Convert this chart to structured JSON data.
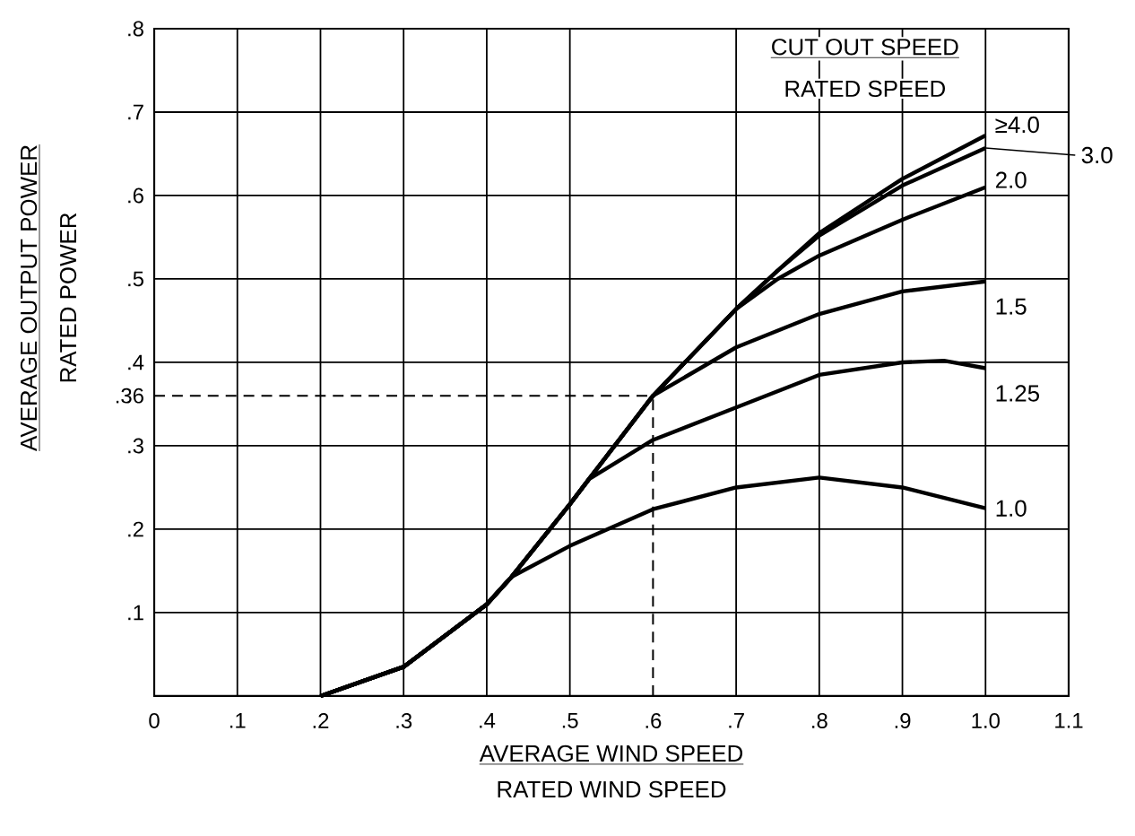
{
  "chart_data": {
    "type": "line",
    "xlabel": "AVERAGE WIND SPEED",
    "ylabel": "AVERAGE OUTPUT POWER",
    "legend_title": "CUT OUT SPEED",
    "annotations": [
      "RATED WIND SPEED",
      "RATED POWER",
      "RATED SPEED"
    ],
    "xlim": [
      0,
      1.1
    ],
    "ylim": [
      0,
      0.8
    ],
    "xticks": [
      0,
      {
        "value": 0.1,
        "label": ".1"
      },
      {
        "value": 0.2,
        "label": ".2"
      },
      {
        "value": 0.3,
        "label": ".3"
      },
      {
        "value": 0.4,
        "label": ".4"
      },
      {
        "value": 0.5,
        "label": ".5"
      },
      {
        "value": 0.6,
        "label": ".6"
      },
      {
        "value": 0.7,
        "label": ".7"
      },
      {
        "value": 0.8,
        "label": ".8"
      },
      {
        "value": 0.9,
        "label": ".9"
      },
      {
        "value": 1.0,
        "label": "1.0"
      },
      {
        "value": 1.1,
        "label": "1.1"
      }
    ],
    "yticks": [
      {
        "value": 0,
        "label": null
      },
      {
        "value": 0.1,
        "label": ".1"
      },
      {
        "value": 0.2,
        "label": ".2"
      },
      {
        "value": 0.3,
        "label": ".3"
      },
      {
        "value": 0.36,
        "label": ".36"
      },
      {
        "value": 0.4,
        "label": ".4"
      },
      {
        "value": 0.5,
        "label": ".5"
      },
      {
        "value": 0.6,
        "label": ".6"
      },
      {
        "value": 0.7,
        "label": ".7"
      },
      {
        "value": 0.8,
        "label": ".8"
      }
    ],
    "grid": true,
    "legend": "top right",
    "marker": "none",
    "line_style": "solid",
    "ref_lines": [
      {
        "axis": "y",
        "value": 0.36,
        "line_style": "dashed"
      },
      {
        "axis": "x",
        "value": 0.6,
        "line_style": "dashed"
      }
    ],
    "series": [
      {
        "name": "1.0",
        "color": "#000000",
        "x": [
          0.2,
          0.3,
          0.4,
          0.43,
          0.5,
          0.6,
          0.7,
          0.8,
          0.9,
          1.0
        ],
        "values": [
          0,
          0.035,
          0.11,
          0.143,
          0.18,
          0.224,
          0.25,
          0.262,
          0.25,
          0.225
        ]
      },
      {
        "name": "1.25",
        "color": "#000000",
        "x": [
          0.2,
          0.3,
          0.4,
          0.43,
          0.5,
          0.523,
          0.6,
          0.7,
          0.8,
          0.9,
          0.95,
          1.0
        ],
        "values": [
          0,
          0.035,
          0.11,
          0.143,
          0.23,
          0.26,
          0.307,
          0.346,
          0.385,
          0.4,
          0.402,
          0.393
        ]
      },
      {
        "name": "1.5",
        "color": "#000000",
        "x": [
          0.2,
          0.3,
          0.4,
          0.43,
          0.5,
          0.523,
          0.6,
          0.7,
          0.8,
          0.9,
          1.0
        ],
        "values": [
          0,
          0.035,
          0.11,
          0.143,
          0.23,
          0.26,
          0.36,
          0.418,
          0.458,
          0.485,
          0.497
        ]
      },
      {
        "name": "2.0",
        "color": "#000000",
        "x": [
          0.2,
          0.3,
          0.4,
          0.43,
          0.5,
          0.523,
          0.6,
          0.7,
          0.75,
          0.8,
          0.9,
          1.0
        ],
        "values": [
          0,
          0.035,
          0.11,
          0.143,
          0.23,
          0.26,
          0.36,
          0.464,
          0.5,
          0.528,
          0.571,
          0.61
        ]
      },
      {
        "name": "3.0",
        "color": "#000000",
        "x": [
          0.2,
          0.3,
          0.4,
          0.43,
          0.5,
          0.523,
          0.6,
          0.7,
          0.75,
          0.8,
          0.9,
          1.0
        ],
        "values": [
          0,
          0.035,
          0.11,
          0.143,
          0.23,
          0.26,
          0.36,
          0.464,
          0.51,
          0.552,
          0.612,
          0.657
        ]
      },
      {
        "name": "≥4.0",
        "color": "#000000",
        "x": [
          0.2,
          0.3,
          0.4,
          0.43,
          0.5,
          0.523,
          0.6,
          0.7,
          0.75,
          0.8,
          0.9,
          1.0
        ],
        "values": [
          0,
          0.035,
          0.11,
          0.143,
          0.23,
          0.26,
          0.36,
          0.464,
          0.51,
          0.555,
          0.62,
          0.672
        ]
      }
    ]
  }
}
